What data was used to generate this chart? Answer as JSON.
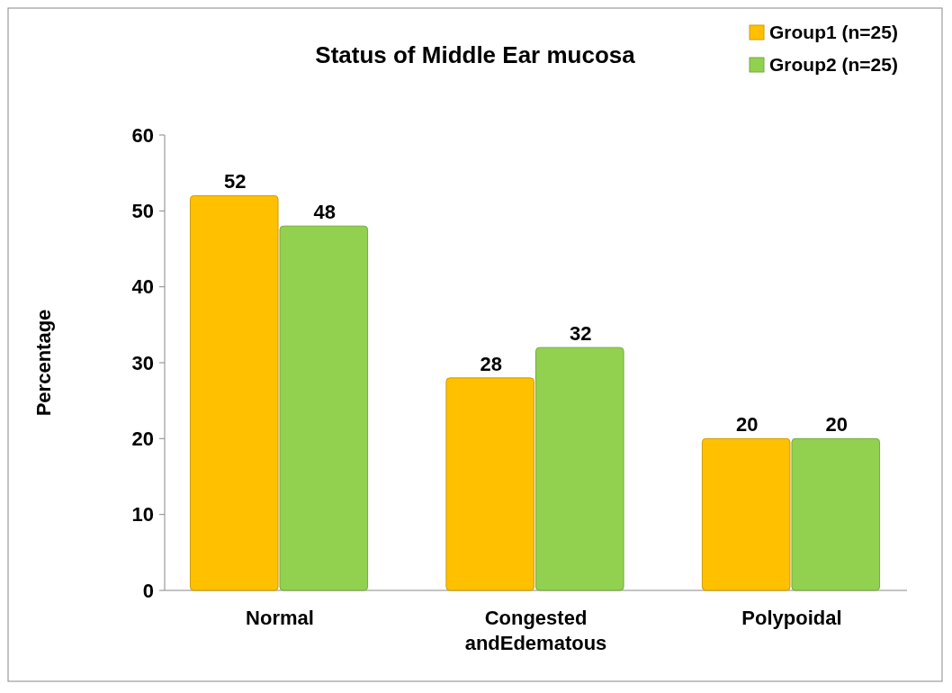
{
  "chart_data": {
    "type": "bar",
    "title": "Status of Middle Ear mucosa",
    "ylabel": "Percentage",
    "categories": [
      "Normal",
      "Congested andEdematous",
      "Polypoidal"
    ],
    "series": [
      {
        "name": "Group1 (n=25)",
        "color": "#ffc000",
        "values": [
          52,
          28,
          20
        ]
      },
      {
        "name": "Group2 (n=25)",
        "color": "#92d050",
        "values": [
          48,
          32,
          20
        ]
      }
    ],
    "ylim": [
      0,
      60
    ],
    "yticks": [
      0,
      10,
      20,
      30,
      40,
      50,
      60
    ],
    "data_labels": true,
    "legend": "top right"
  }
}
